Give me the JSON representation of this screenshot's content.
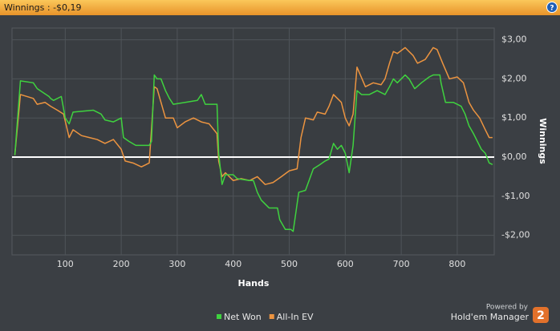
{
  "chart_data": {
    "type": "line",
    "title": "Winnings : -$0,19",
    "help": "?",
    "xlabel": "Hands",
    "ylabel": "Winnings",
    "xlim": [
      5,
      866
    ],
    "ylim": [
      -2.5,
      3.3
    ],
    "xticks": [
      100,
      200,
      300,
      400,
      500,
      600,
      700,
      800
    ],
    "yticks": [
      {
        "value": -2,
        "label": "-$2,00"
      },
      {
        "value": -1,
        "label": "-$1,00"
      },
      {
        "value": 0,
        "label": "$0,00"
      },
      {
        "value": 1,
        "label": "$1,00"
      },
      {
        "value": 2,
        "label": "$2,00"
      },
      {
        "value": 3,
        "label": "$3,00"
      }
    ],
    "grid": true,
    "legend": "bottom",
    "series": [
      {
        "name": "Net Won",
        "color": "#3fd23f",
        "x": [
          10,
          20,
          43,
          50,
          71,
          74,
          79,
          93,
          100,
          107,
          114,
          150,
          164,
          171,
          186,
          200,
          204,
          214,
          226,
          250,
          254,
          259,
          264,
          271,
          279,
          286,
          293,
          336,
          343,
          350,
          371,
          374,
          380,
          386,
          400,
          407,
          429,
          436,
          443,
          450,
          457,
          464,
          479,
          483,
          493,
          503,
          507,
          517,
          529,
          543,
          554,
          564,
          571,
          579,
          586,
          593,
          600,
          607,
          614,
          621,
          629,
          643,
          657,
          671,
          679,
          686,
          693,
          707,
          714,
          724,
          736,
          750,
          757,
          769,
          771,
          779,
          793,
          807,
          814,
          821,
          829,
          836,
          843,
          850,
          857,
          863
        ],
        "values": [
          0.05,
          1.95,
          1.9,
          1.75,
          1.55,
          1.5,
          1.45,
          1.55,
          1.0,
          0.85,
          1.15,
          1.2,
          1.1,
          0.95,
          0.9,
          1.0,
          0.5,
          0.4,
          0.3,
          0.3,
          0.4,
          2.1,
          2.0,
          2.0,
          1.7,
          1.5,
          1.35,
          1.45,
          1.6,
          1.35,
          1.35,
          0.1,
          -0.7,
          -0.45,
          -0.45,
          -0.55,
          -0.6,
          -0.6,
          -0.9,
          -1.1,
          -1.2,
          -1.3,
          -1.3,
          -1.6,
          -1.85,
          -1.85,
          -1.9,
          -0.9,
          -0.85,
          -0.3,
          -0.2,
          -0.1,
          -0.05,
          0.35,
          0.2,
          0.3,
          0.1,
          -0.4,
          0.3,
          1.7,
          1.6,
          1.6,
          1.7,
          1.6,
          1.8,
          2.0,
          1.9,
          2.1,
          2.0,
          1.75,
          1.9,
          2.05,
          2.1,
          2.1,
          1.9,
          1.4,
          1.4,
          1.3,
          1.1,
          0.8,
          0.6,
          0.4,
          0.2,
          0.1,
          -0.15,
          -0.19
        ]
      },
      {
        "name": "All-In EV",
        "color": "#ec9440",
        "x": [
          10,
          20,
          43,
          50,
          64,
          74,
          86,
          97,
          107,
          114,
          129,
          143,
          157,
          171,
          186,
          200,
          207,
          221,
          236,
          243,
          250,
          259,
          264,
          279,
          293,
          300,
          314,
          329,
          343,
          357,
          371,
          374,
          380,
          386,
          400,
          414,
          429,
          443,
          457,
          471,
          486,
          500,
          514,
          521,
          529,
          543,
          550,
          564,
          571,
          579,
          586,
          593,
          600,
          607,
          614,
          621,
          636,
          650,
          664,
          671,
          679,
          686,
          693,
          707,
          721,
          729,
          743,
          757,
          764,
          774,
          786,
          800,
          811,
          821,
          829,
          840,
          850,
          857,
          863
        ],
        "values": [
          0.05,
          1.6,
          1.5,
          1.35,
          1.4,
          1.3,
          1.2,
          1.1,
          0.5,
          0.7,
          0.55,
          0.5,
          0.45,
          0.35,
          0.45,
          0.2,
          -0.1,
          -0.15,
          -0.25,
          -0.2,
          -0.15,
          1.8,
          1.75,
          1.0,
          1.0,
          0.75,
          0.9,
          1.0,
          0.9,
          0.85,
          0.6,
          -0.1,
          -0.5,
          -0.4,
          -0.6,
          -0.55,
          -0.6,
          -0.5,
          -0.7,
          -0.65,
          -0.5,
          -0.35,
          -0.3,
          0.5,
          1.0,
          0.95,
          1.15,
          1.1,
          1.3,
          1.6,
          1.5,
          1.4,
          1.0,
          0.8,
          1.1,
          2.3,
          1.8,
          1.9,
          1.85,
          2.0,
          2.4,
          2.7,
          2.65,
          2.8,
          2.6,
          2.4,
          2.5,
          2.8,
          2.75,
          2.4,
          2.0,
          2.05,
          1.9,
          1.4,
          1.2,
          1.0,
          0.7,
          0.5,
          0.5
        ]
      }
    ],
    "brand": {
      "powered_by": "Powered by",
      "name": "Hold'em Manager",
      "version": "2"
    }
  }
}
